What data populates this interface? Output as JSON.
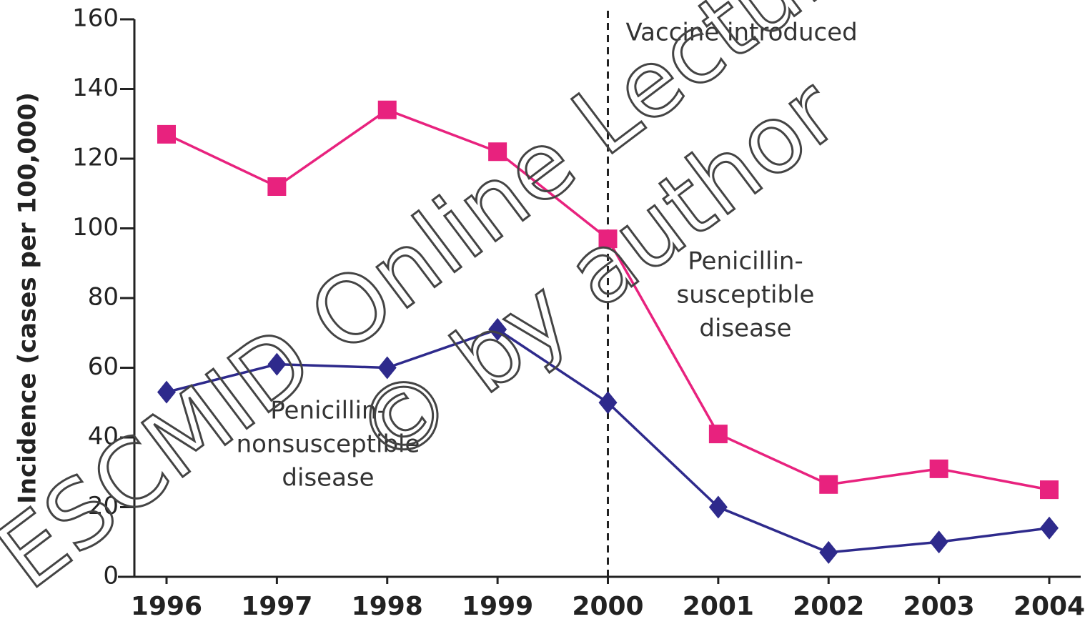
{
  "chart_data": {
    "type": "line",
    "y_label": "Incidence (cases per 100,000)",
    "categories": [
      "1996",
      "1997",
      "1998",
      "1999",
      "2000",
      "2001",
      "2002",
      "2003",
      "2004"
    ],
    "series": [
      {
        "name": [
          "Penicillin-",
          "susceptible",
          "disease"
        ],
        "color": "#e8227e",
        "marker": "square",
        "values": [
          127,
          112,
          134,
          122,
          97,
          41,
          26.5,
          31,
          25
        ]
      },
      {
        "name": [
          "Penicillin-",
          "nonsusceptible",
          "disease"
        ],
        "color": "#2e2a8c",
        "marker": "diamond",
        "values": [
          53,
          61,
          60,
          71,
          50,
          20,
          7,
          10,
          14
        ]
      }
    ],
    "ylim": [
      0,
      160
    ],
    "yticks": [
      0,
      20,
      40,
      60,
      80,
      100,
      120,
      140,
      160
    ],
    "annotation": {
      "text": "Vaccine introduced",
      "x": "2000"
    },
    "watermark": [
      "ESCMID Online Lecture Library",
      "© by author"
    ]
  }
}
